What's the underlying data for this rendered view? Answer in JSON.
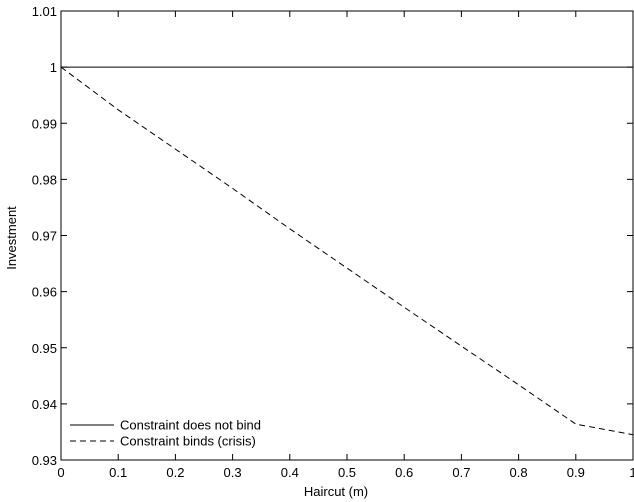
{
  "chart_data": {
    "type": "line",
    "title": "",
    "xlabel": "Haircut (m)",
    "ylabel": "Investment",
    "xlim": [
      0,
      1
    ],
    "ylim": [
      0.93,
      1.01
    ],
    "grid": false,
    "legend_position": "bottom-left",
    "x_ticks": [
      {
        "value": 0,
        "label": "0"
      },
      {
        "value": 0.1,
        "label": "0.1"
      },
      {
        "value": 0.2,
        "label": "0.2"
      },
      {
        "value": 0.3,
        "label": "0.3"
      },
      {
        "value": 0.4,
        "label": "0.4"
      },
      {
        "value": 0.5,
        "label": "0.5"
      },
      {
        "value": 0.6,
        "label": "0.6"
      },
      {
        "value": 0.7,
        "label": "0.7"
      },
      {
        "value": 0.8,
        "label": "0.8"
      },
      {
        "value": 0.9,
        "label": "0.9"
      },
      {
        "value": 1,
        "label": "1"
      }
    ],
    "y_ticks": [
      {
        "value": 0.93,
        "label": "0.93"
      },
      {
        "value": 0.94,
        "label": "0.94"
      },
      {
        "value": 0.95,
        "label": "0.95"
      },
      {
        "value": 0.96,
        "label": "0.96"
      },
      {
        "value": 0.97,
        "label": "0.97"
      },
      {
        "value": 0.98,
        "label": "0.98"
      },
      {
        "value": 0.99,
        "label": "0.99"
      },
      {
        "value": 1,
        "label": "1"
      },
      {
        "value": 1.01,
        "label": "1.01"
      }
    ],
    "series": [
      {
        "name": "Constraint does not bind",
        "style": "solid",
        "color": "#000000",
        "x": [
          0,
          0.1,
          0.2,
          0.3,
          0.4,
          0.5,
          0.6,
          0.7,
          0.8,
          0.9,
          1
        ],
        "y": [
          1,
          1,
          1,
          1,
          1,
          1,
          1,
          1,
          1,
          1,
          1
        ]
      },
      {
        "name": "Constraint binds (crisis)",
        "style": "dashed",
        "color": "#000000",
        "x": [
          0,
          0.1,
          0.2,
          0.3,
          0.4,
          0.5,
          0.6,
          0.7,
          0.8,
          0.9,
          1
        ],
        "y": [
          1,
          0.9924,
          0.9854,
          0.9784,
          0.9712,
          0.9642,
          0.9572,
          0.9503,
          0.9434,
          0.9364,
          0.9345
        ]
      }
    ]
  }
}
